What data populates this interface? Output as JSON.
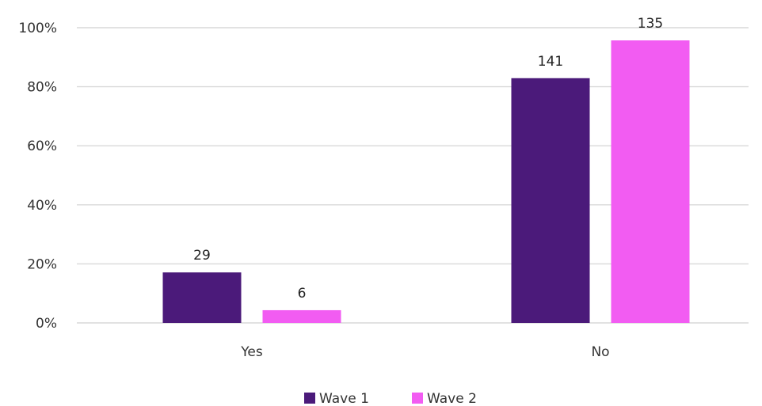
{
  "chart_data": {
    "type": "bar",
    "categories": [
      "Yes",
      "No"
    ],
    "series": [
      {
        "name": "Wave 1",
        "color": "#4b1a7a",
        "values": [
          17.1,
          82.9
        ],
        "labels": [
          "29",
          "141"
        ]
      },
      {
        "name": "Wave 2",
        "color": "#f25cf2",
        "values": [
          4.3,
          95.7
        ],
        "labels": [
          "6",
          "135"
        ]
      }
    ],
    "y_ticks": [
      "0%",
      "20%",
      "40%",
      "60%",
      "80%",
      "100%"
    ],
    "ylim": [
      0,
      100
    ],
    "grid": true,
    "legend_position": "bottom-center"
  }
}
